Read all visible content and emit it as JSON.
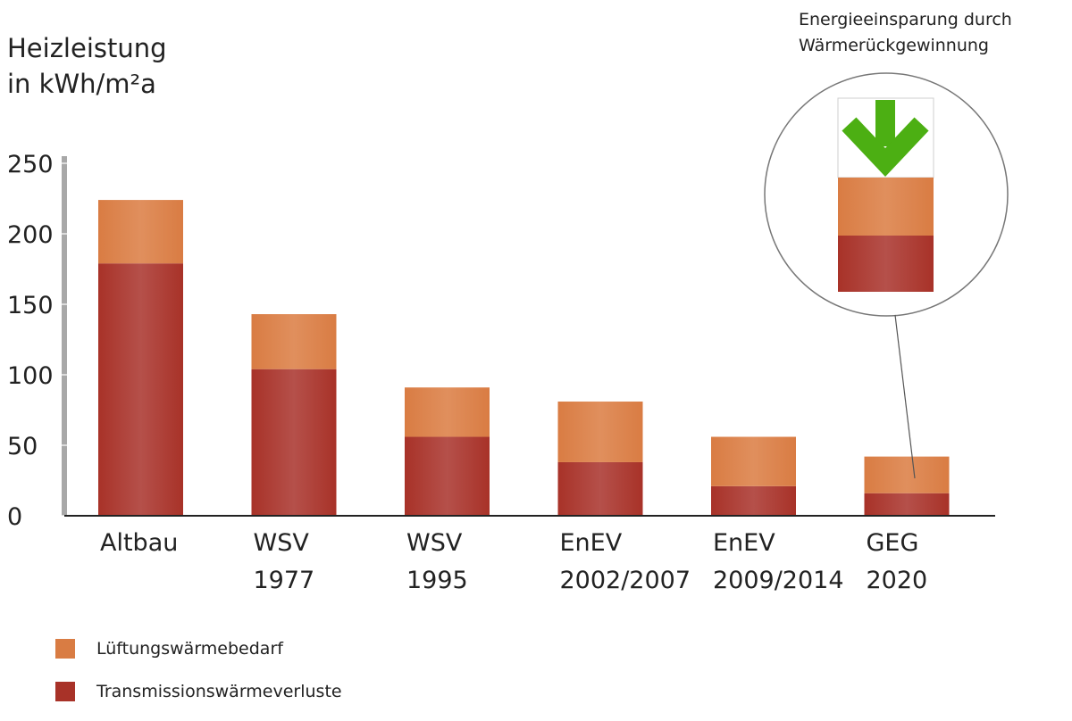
{
  "chart_data": {
    "type": "bar",
    "stacked": true,
    "ylabel_line1": "Heizleistung",
    "ylabel_line2": "in kWh/m²a",
    "ylim": [
      0,
      250
    ],
    "yticks": [
      0,
      50,
      100,
      150,
      200,
      250
    ],
    "categories": [
      [
        "Altbau"
      ],
      [
        "WSV",
        "1977"
      ],
      [
        "WSV",
        "1995"
      ],
      [
        "EnEV",
        "2002/2007"
      ],
      [
        "EnEV",
        "2009/2014"
      ],
      [
        "GEG",
        "2020"
      ]
    ],
    "series": [
      {
        "name": "Transmissionswärmeverluste",
        "color": "#a83228",
        "values": [
          179,
          104,
          56,
          38,
          21,
          16
        ]
      },
      {
        "name": "Lüftungswärmebedarf",
        "color": "#d97c43",
        "values": [
          45,
          39,
          35,
          43,
          35,
          26
        ]
      }
    ],
    "legend_position": "bottom-left",
    "grid": false
  },
  "callout": {
    "line1": "Energieeinsparung durch",
    "line2": "Wärmerückgewinnung",
    "arrow_color": "#4caf13",
    "arrow_icon": "down-arrow-icon"
  }
}
